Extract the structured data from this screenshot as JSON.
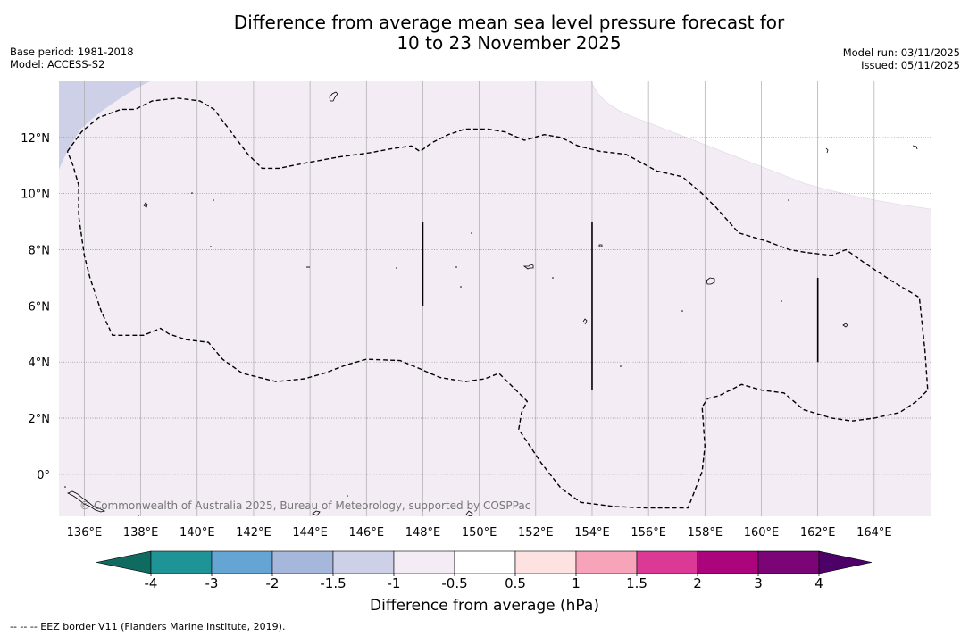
{
  "header": {
    "title_line1": "Difference from average mean sea level pressure forecast for",
    "title_line2": "10 to 23 November 2025",
    "base_period": "Base period: 1981-2018",
    "model": "Model: ACCESS-S2",
    "model_run": "Model run: 03/11/2025",
    "issued": "Issued: 05/11/2025"
  },
  "map": {
    "lon_labels": [
      "136°E",
      "138°E",
      "140°E",
      "142°E",
      "144°E",
      "146°E",
      "148°E",
      "150°E",
      "152°E",
      "154°E",
      "156°E",
      "158°E",
      "160°E",
      "162°E",
      "164°E"
    ],
    "lon_values": [
      136,
      138,
      140,
      142,
      144,
      146,
      148,
      150,
      152,
      154,
      156,
      158,
      160,
      162,
      164
    ],
    "lat_labels": [
      "12°N",
      "10°N",
      "8°N",
      "6°N",
      "4°N",
      "2°N",
      "0°"
    ],
    "lat_values": [
      12,
      10,
      8,
      6,
      4,
      2,
      0
    ],
    "lon_range": [
      135.1,
      166.0
    ],
    "lat_range": [
      -1.5,
      14.0
    ],
    "copyright": "© Commonwealth of Australia 2025, Bureau of Meteorology, supported by COSPPac",
    "anomaly_fill_color": "#f3ecf5",
    "negative_fill_color": "#cdd0e6",
    "eez_boundary_lonlat": [
      [
        135.4,
        11.5
      ],
      [
        135.9,
        12.2
      ],
      [
        136.5,
        12.7
      ],
      [
        137.3,
        13.0
      ],
      [
        137.8,
        13.0
      ],
      [
        138.4,
        13.3
      ],
      [
        139.3,
        13.4
      ],
      [
        140.1,
        13.3
      ],
      [
        140.6,
        13.0
      ],
      [
        141.2,
        12.2
      ],
      [
        141.8,
        11.4
      ],
      [
        142.3,
        10.9
      ],
      [
        142.9,
        10.9
      ],
      [
        143.9,
        11.1
      ],
      [
        145.0,
        11.3
      ],
      [
        146.1,
        11.45
      ],
      [
        146.9,
        11.6
      ],
      [
        147.6,
        11.7
      ],
      [
        147.9,
        11.5
      ],
      [
        148.3,
        11.8
      ],
      [
        148.9,
        12.1
      ],
      [
        149.5,
        12.3
      ],
      [
        150.3,
        12.3
      ],
      [
        150.9,
        12.2
      ],
      [
        151.6,
        11.9
      ],
      [
        152.3,
        12.1
      ],
      [
        152.9,
        12.0
      ],
      [
        153.5,
        11.7
      ],
      [
        154.3,
        11.5
      ],
      [
        155.2,
        11.4
      ],
      [
        156.3,
        10.8
      ],
      [
        157.2,
        10.6
      ],
      [
        157.9,
        10.0
      ],
      [
        158.4,
        9.5
      ],
      [
        159.2,
        8.6
      ],
      [
        160.2,
        8.3
      ],
      [
        161.0,
        8.0
      ],
      [
        161.6,
        7.9
      ],
      [
        162.5,
        7.8
      ],
      [
        163.0,
        8.0
      ],
      [
        163.7,
        7.5
      ],
      [
        164.6,
        6.9
      ],
      [
        165.6,
        6.3
      ],
      [
        165.8,
        4.4
      ],
      [
        165.9,
        3.0
      ],
      [
        165.5,
        2.6
      ],
      [
        164.9,
        2.2
      ],
      [
        164.0,
        2.0
      ],
      [
        163.2,
        1.9
      ],
      [
        162.5,
        2.0
      ],
      [
        161.5,
        2.3
      ],
      [
        160.8,
        2.9
      ],
      [
        160.0,
        3.0
      ],
      [
        159.3,
        3.2
      ],
      [
        158.5,
        2.8
      ],
      [
        158.1,
        2.7
      ],
      [
        157.9,
        2.4
      ],
      [
        158.0,
        1.0
      ],
      [
        157.9,
        0.1
      ],
      [
        157.4,
        -1.2
      ],
      [
        156.0,
        -1.2
      ],
      [
        154.8,
        -1.15
      ],
      [
        153.6,
        -1.0
      ],
      [
        152.9,
        -0.5
      ],
      [
        152.2,
        0.4
      ],
      [
        151.4,
        1.6
      ],
      [
        151.5,
        2.2
      ],
      [
        151.7,
        2.6
      ],
      [
        151.3,
        3.0
      ],
      [
        150.7,
        3.6
      ],
      [
        150.2,
        3.4
      ],
      [
        149.5,
        3.3
      ],
      [
        148.6,
        3.45
      ],
      [
        147.8,
        3.8
      ],
      [
        147.2,
        4.05
      ],
      [
        146.0,
        4.1
      ],
      [
        145.3,
        3.9
      ],
      [
        144.5,
        3.6
      ],
      [
        143.8,
        3.4
      ],
      [
        142.8,
        3.3
      ],
      [
        141.6,
        3.6
      ],
      [
        140.9,
        4.1
      ],
      [
        140.4,
        4.7
      ],
      [
        139.6,
        4.8
      ],
      [
        139.0,
        5.0
      ],
      [
        138.7,
        5.2
      ],
      [
        138.1,
        4.95
      ],
      [
        137.0,
        4.95
      ],
      [
        136.6,
        5.8
      ],
      [
        136.2,
        7.0
      ],
      [
        136.0,
        7.8
      ],
      [
        135.8,
        9.2
      ],
      [
        135.8,
        10.3
      ],
      [
        135.6,
        11.0
      ],
      [
        135.4,
        11.5
      ]
    ],
    "boundary_lines_lonlat": [
      [
        [
          148.0,
          9.0
        ],
        [
          148.0,
          6.0
        ]
      ],
      [
        [
          154.0,
          9.0
        ],
        [
          154.0,
          3.0
        ]
      ],
      [
        [
          162.0,
          7.0
        ],
        [
          162.0,
          4.0
        ]
      ]
    ]
  },
  "colorbar": {
    "ticks": [
      "-4",
      "-3",
      "-2",
      "-1.5",
      "-1",
      "-0.5",
      "0.5",
      "1",
      "1.5",
      "2",
      "3",
      "4"
    ],
    "segment_colors": [
      "#1f9496",
      "#65a5d3",
      "#a5b7db",
      "#cdd0e6",
      "#f3ecf5",
      "#ffffff",
      "#fde2e1",
      "#f7a3b9",
      "#dc3996",
      "#ac047d",
      "#7b0477"
    ],
    "under_color": "#0f6b5f",
    "over_color": "#4d0068",
    "label": "Difference from average (hPa)"
  },
  "footnote": "--  --  -- EEZ border V11 (Flanders Marine Institute, 2019)."
}
